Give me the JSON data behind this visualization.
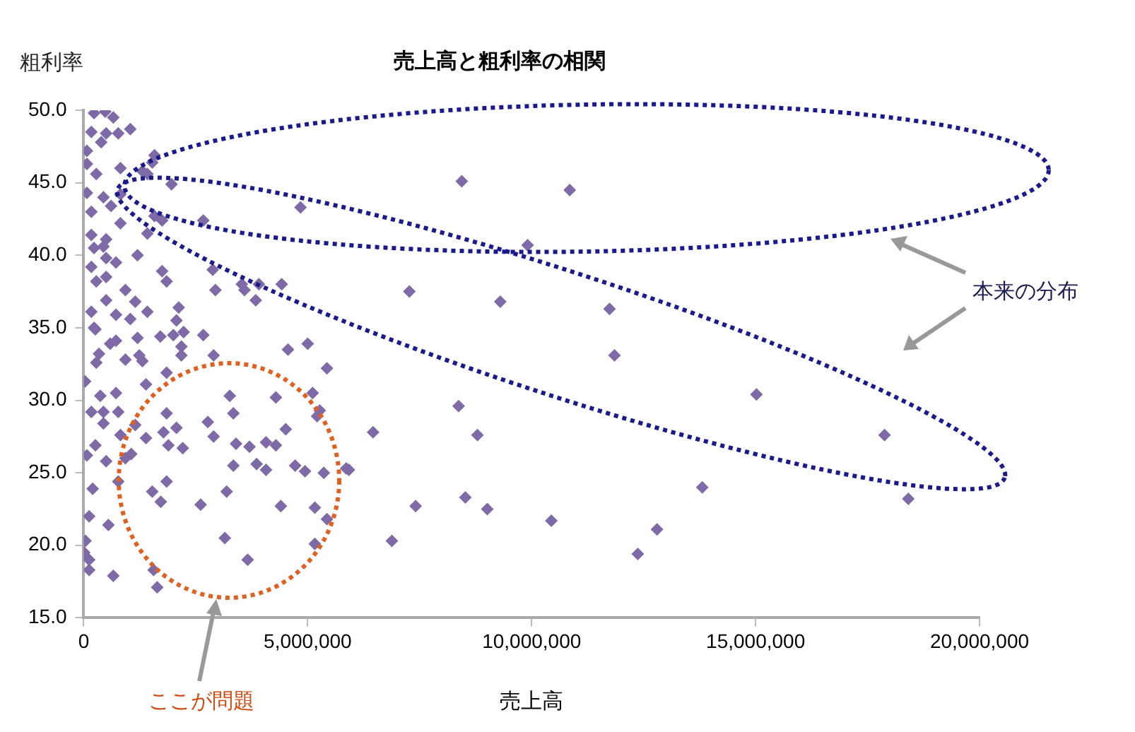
{
  "chart_data": {
    "type": "scatter",
    "title": "売上高と粗利率の相関",
    "xlabel": "売上高",
    "ylabel": "粗利率",
    "xlim": [
      0,
      20000000
    ],
    "xticks": [
      0,
      {
        "value": 5000000,
        "label": "5,000,000"
      },
      {
        "value": 10000000,
        "label": "10,000,000"
      },
      {
        "value": 15000000,
        "label": "15,000,000"
      },
      {
        "value": 20000000,
        "label": "20,000,000"
      }
    ],
    "ylim": [
      15,
      50
    ],
    "yticks": [
      {
        "value": 15,
        "label": "15.0"
      },
      {
        "value": 20,
        "label": "20.0"
      },
      {
        "value": 25,
        "label": "25.0"
      },
      {
        "value": 30,
        "label": "30.0"
      },
      {
        "value": 35,
        "label": "35.0"
      },
      {
        "value": 40,
        "label": "40.0"
      },
      {
        "value": 45,
        "label": "45.0"
      },
      {
        "value": 50,
        "label": "50.0"
      }
    ],
    "grid": false,
    "legend": false,
    "marker": "diamond",
    "annotations": [
      "本来の分布",
      "ここが問題"
    ],
    "series": [
      {
        "color": "#7f6aa8",
        "x": [
          8440000,
          10850000,
          9910000,
          7270000,
          9300000,
          11740000,
          11850000,
          8370000,
          6460000,
          8790000,
          5920000,
          7410000,
          8520000,
          9010000,
          10440000,
          6880000,
          12800000,
          12370000,
          15020000,
          17880000,
          13810000,
          18410000,
          260000,
          720000,
          590000,
          1200000,
          1710000,
          2000000,
          2230000,
          2670000,
          2180000,
          340000,
          280000,
          930000,
          1240000,
          1310000,
          2180000,
          2900000,
          4560000,
          5000000,
          5430000,
          30000,
          1390000,
          1850000,
          370000,
          720000,
          170000,
          440000,
          770000,
          3260000,
          4290000,
          5110000,
          5270000,
          5210000,
          1850000,
          3340000,
          2770000,
          2900000,
          440000,
          820000,
          1150000,
          1390000,
          1780000,
          2070000,
          260000,
          70000,
          1890000,
          2210000,
          3400000,
          3700000,
          4070000,
          4290000,
          4510000,
          3340000,
          3860000,
          4070000,
          4720000,
          4940000,
          5360000,
          5860000,
          500000,
          930000,
          1060000,
          770000,
          200000,
          1530000,
          1850000,
          1720000,
          2610000,
          3190000,
          4400000,
          5160000,
          5430000,
          120000,
          550000,
          3150000,
          5160000,
          40000,
          10000,
          120000,
          120000,
          660000,
          3660000,
          1560000,
          1640000,
          230000,
          480000,
          660000,
          170000,
          500000,
          1040000,
          770000,
          70000,
          390000,
          1580000,
          1530000,
          70000,
          280000,
          820000,
          1310000,
          1420000,
          1960000,
          4840000,
          70000,
          440000,
          820000,
          170000,
          610000,
          1580000,
          1750000,
          2670000,
          820000,
          170000,
          500000,
          1420000,
          230000,
          500000,
          1200000,
          1750000,
          1850000,
          2880000,
          2940000,
          3530000,
          3590000,
          3840000,
          3910000,
          4420000,
          170000,
          280000,
          500000,
          720000,
          930000,
          1150000,
          500000,
          170000,
          720000,
          1040000,
          1420000,
          2120000,
          2070000,
          230000,
          440000
        ],
        "values": [
          45.1,
          44.5,
          40.7,
          37.5,
          36.8,
          36.3,
          33.1,
          29.6,
          27.8,
          27.6,
          25.2,
          22.7,
          23.3,
          22.5,
          21.7,
          20.3,
          21.1,
          19.4,
          30.4,
          27.6,
          24.0,
          23.2,
          34.9,
          34.1,
          33.9,
          34.3,
          34.4,
          34.5,
          34.7,
          34.5,
          33.7,
          33.2,
          32.6,
          32.8,
          33.1,
          32.7,
          33.1,
          33.1,
          33.5,
          33.9,
          32.2,
          31.3,
          31.1,
          31.9,
          30.3,
          30.5,
          29.2,
          29.2,
          29.2,
          30.3,
          30.2,
          30.5,
          29.3,
          28.9,
          29.1,
          29.1,
          28.5,
          27.5,
          28.4,
          27.6,
          28.3,
          27.4,
          27.8,
          28.1,
          26.9,
          26.2,
          26.9,
          26.7,
          27.0,
          26.8,
          27.1,
          26.9,
          28.0,
          25.5,
          25.6,
          25.2,
          25.5,
          25.1,
          25.0,
          25.3,
          25.8,
          26.0,
          26.3,
          24.4,
          23.9,
          23.7,
          24.4,
          23.0,
          22.8,
          23.7,
          22.7,
          22.6,
          21.8,
          22.0,
          21.4,
          20.5,
          20.1,
          20.3,
          19.5,
          19.0,
          18.3,
          17.9,
          19.0,
          18.3,
          17.1,
          49.8,
          49.9,
          49.5,
          48.5,
          48.4,
          48.7,
          48.4,
          47.2,
          47.8,
          46.9,
          46.4,
          46.3,
          45.6,
          46.0,
          45.8,
          45.6,
          44.9,
          43.3,
          44.3,
          44.0,
          44.2,
          43.0,
          43.4,
          42.7,
          42.4,
          42.4,
          42.2,
          41.4,
          41.1,
          41.5,
          40.5,
          39.8,
          40.0,
          38.9,
          38.2,
          39.0,
          37.6,
          38.0,
          37.6,
          36.9,
          38.0,
          38.0,
          39.2,
          38.2,
          38.5,
          39.5,
          37.6,
          36.8,
          36.9,
          36.1,
          35.9,
          35.6,
          36.1,
          36.4,
          35.5,
          35.0,
          40.6
        ]
      }
    ]
  }
}
